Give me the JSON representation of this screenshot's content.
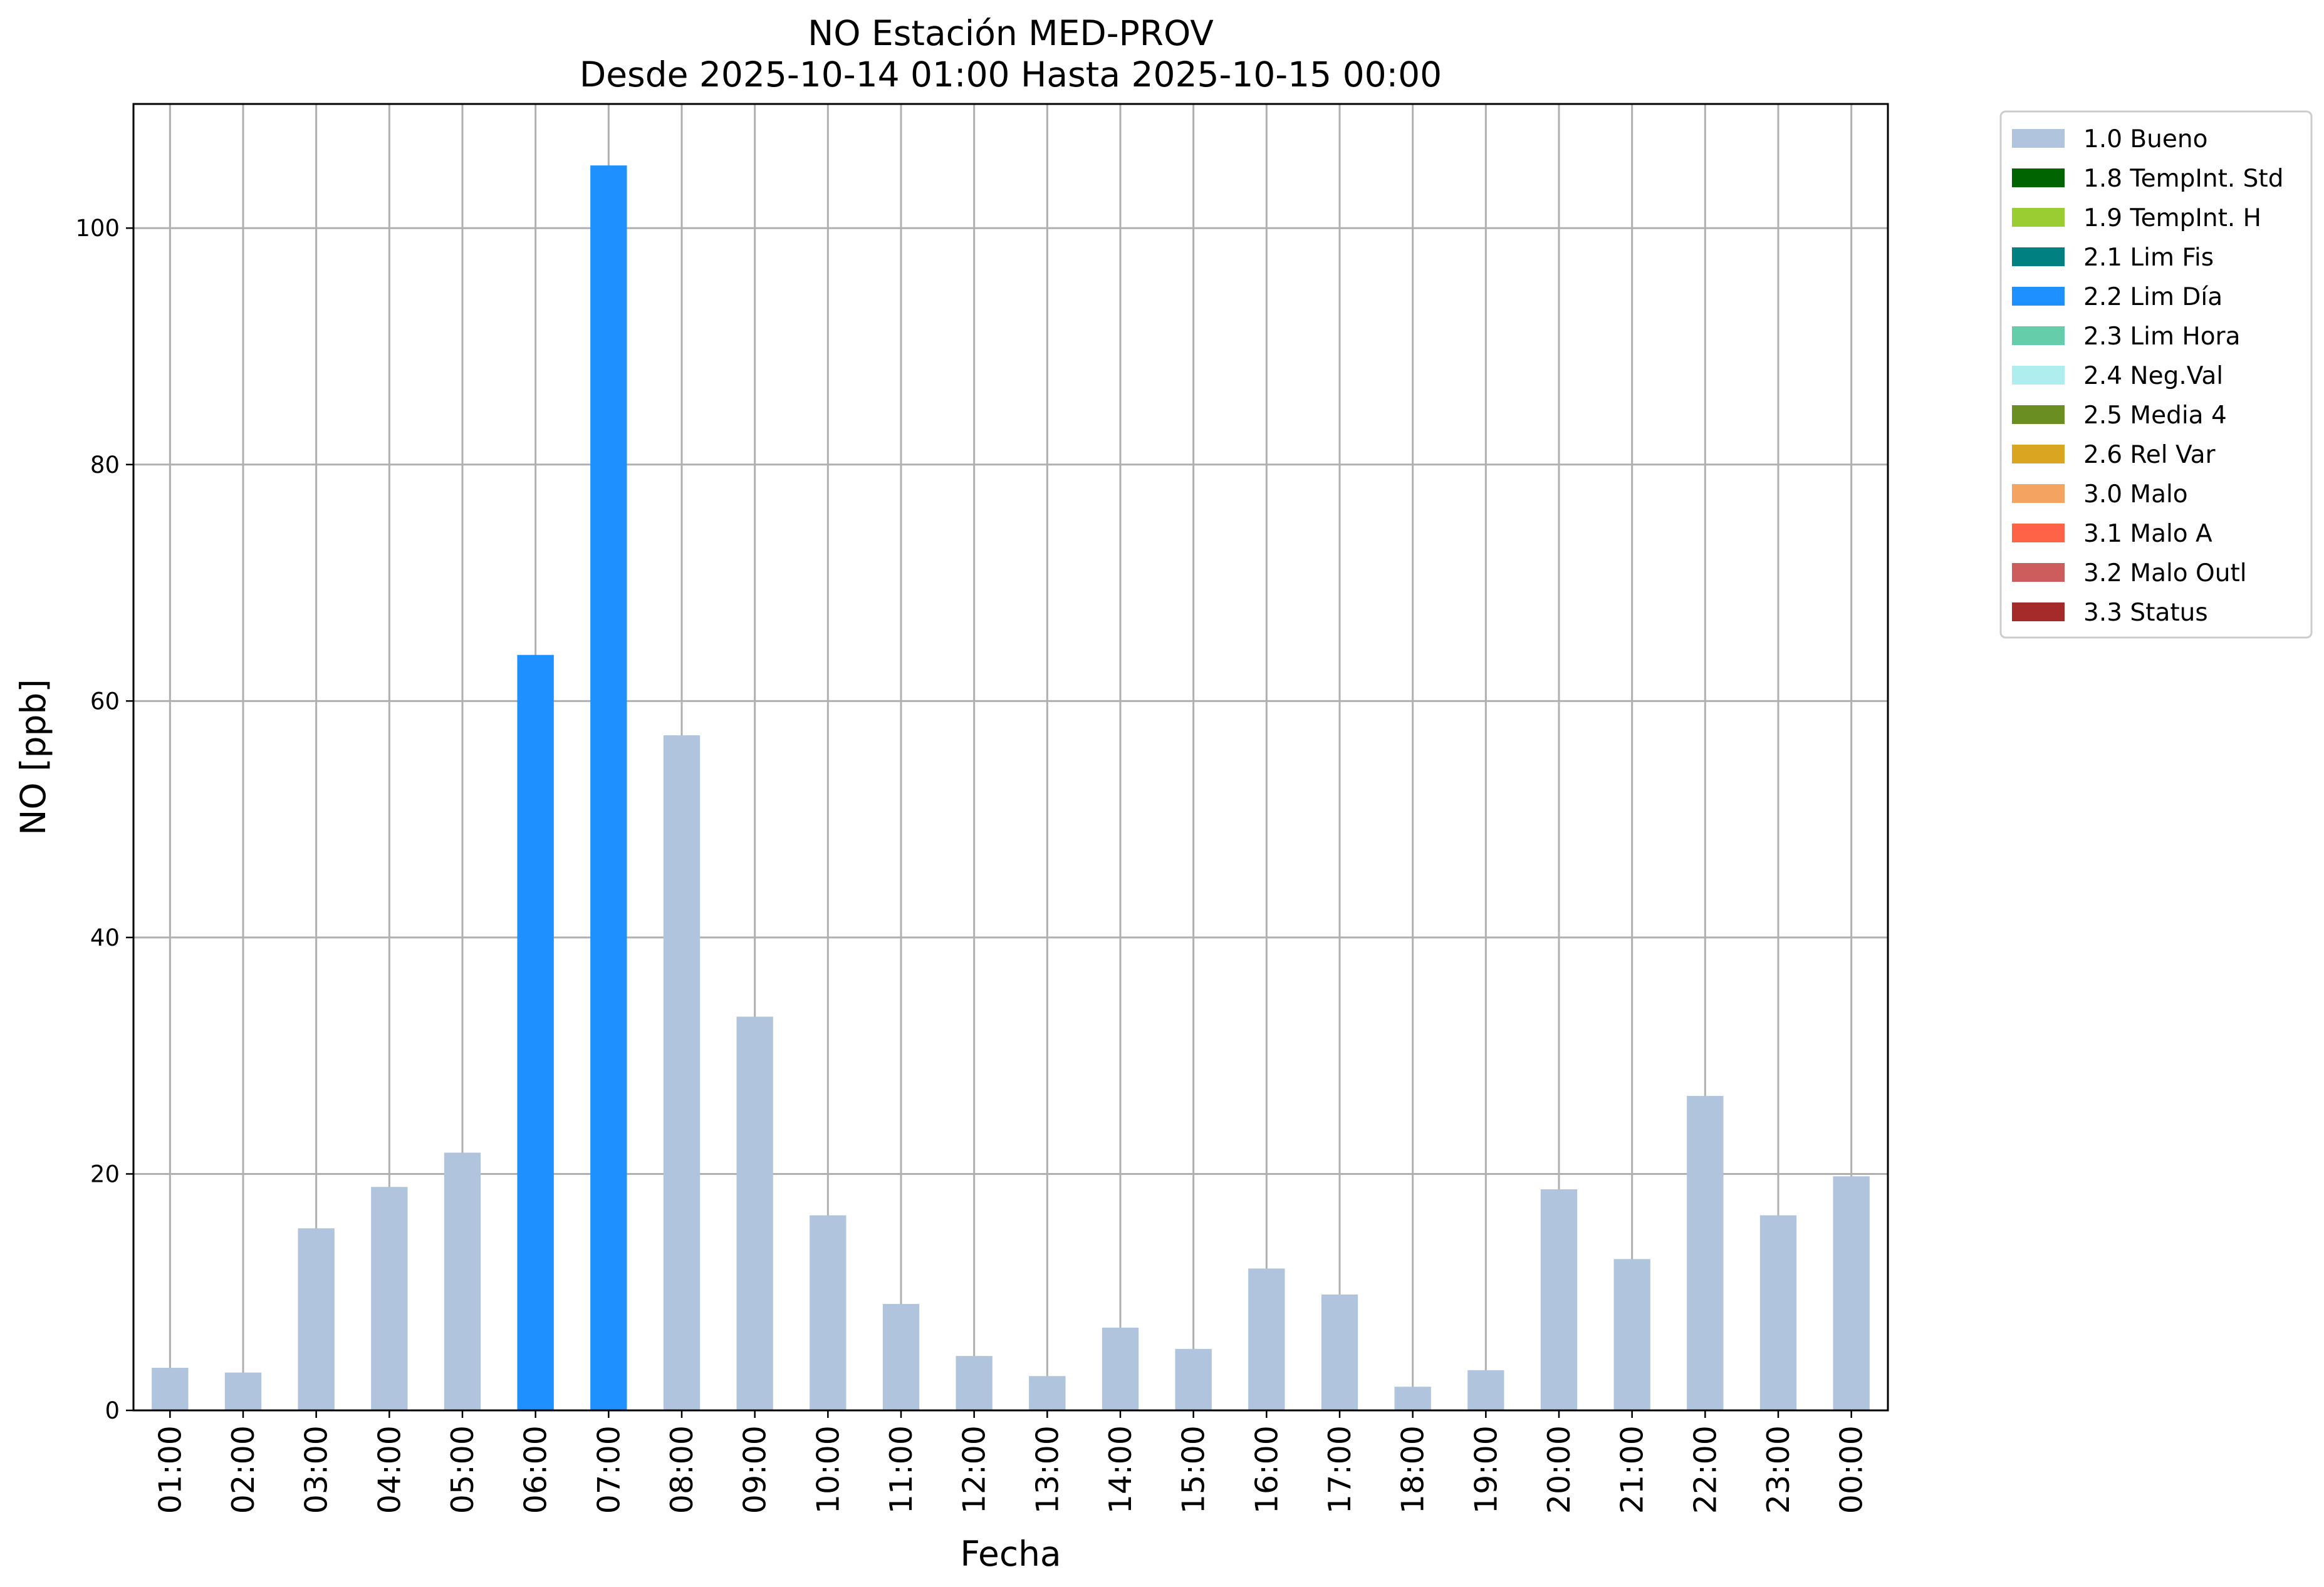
{
  "chart_data": {
    "type": "bar",
    "title": "NO Estación MED-PROV",
    "subtitle": "Desde 2025-10-14 01:00 Hasta 2025-10-15 00:00",
    "xlabel": "Fecha",
    "ylabel": "NO [ppb]",
    "ylim": [
      0,
      110.5
    ],
    "yticks": [
      0,
      20,
      40,
      60,
      80,
      100
    ],
    "grid": true,
    "legend_position": "outside-top-right",
    "categories": [
      "01:00",
      "02:00",
      "03:00",
      "04:00",
      "05:00",
      "06:00",
      "07:00",
      "08:00",
      "09:00",
      "10:00",
      "11:00",
      "12:00",
      "13:00",
      "14:00",
      "15:00",
      "16:00",
      "17:00",
      "18:00",
      "19:00",
      "20:00",
      "21:00",
      "22:00",
      "23:00",
      "00:00"
    ],
    "values": [
      3.6,
      3.2,
      15.4,
      18.9,
      21.8,
      63.9,
      105.3,
      57.1,
      33.3,
      16.5,
      9.0,
      4.6,
      2.9,
      7.0,
      5.2,
      12.0,
      9.8,
      2.0,
      3.4,
      18.7,
      12.8,
      26.6,
      16.5,
      19.8
    ],
    "flags": [
      "1.0",
      "1.0",
      "1.0",
      "1.0",
      "1.0",
      "2.2",
      "2.2",
      "1.0",
      "1.0",
      "1.0",
      "1.0",
      "1.0",
      "1.0",
      "1.0",
      "1.0",
      "1.0",
      "1.0",
      "1.0",
      "1.0",
      "1.0",
      "1.0",
      "1.0",
      "1.0",
      "1.0"
    ],
    "legend": [
      {
        "code": "1.0",
        "label": "1.0 Bueno",
        "color": "#b0c4de"
      },
      {
        "code": "1.8",
        "label": "1.8 TempInt. Std",
        "color": "#006400"
      },
      {
        "code": "1.9",
        "label": "1.9 TempInt. H",
        "color": "#9acd32"
      },
      {
        "code": "2.1",
        "label": "2.1 Lim Fis",
        "color": "#008080"
      },
      {
        "code": "2.2",
        "label": "2.2 Lim Día",
        "color": "#1e90ff"
      },
      {
        "code": "2.3",
        "label": "2.3 Lim Hora",
        "color": "#66cdaa"
      },
      {
        "code": "2.4",
        "label": "2.4 Neg.Val",
        "color": "#afeeee"
      },
      {
        "code": "2.5",
        "label": "2.5 Media 4",
        "color": "#6b8e23"
      },
      {
        "code": "2.6",
        "label": "2.6 Rel Var",
        "color": "#daa520"
      },
      {
        "code": "3.0",
        "label": "3.0 Malo",
        "color": "#f4a460"
      },
      {
        "code": "3.1",
        "label": "3.1 Malo A",
        "color": "#ff6347"
      },
      {
        "code": "3.2",
        "label": "3.2 Malo Outl",
        "color": "#cd5c5c"
      },
      {
        "code": "3.3",
        "label": "3.3 Status",
        "color": "#a52a2a"
      }
    ]
  }
}
